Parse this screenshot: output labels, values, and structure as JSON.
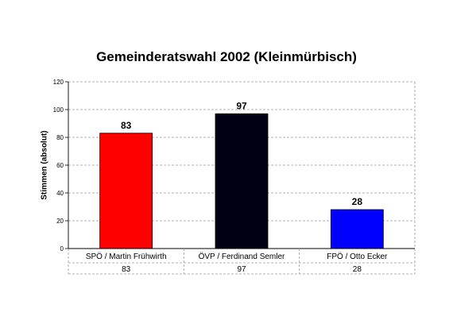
{
  "chart_data": {
    "type": "bar",
    "title": "Gemeinderatswahl 2002 (Kleinmürbisch)",
    "ylabel": "Stimmen (absolut)",
    "xlabel": "",
    "ylim": [
      0,
      120
    ],
    "yticks": [
      0,
      20,
      40,
      60,
      80,
      100,
      120
    ],
    "grid": true,
    "categories": [
      "SPÖ / Martin Frühwirth",
      "ÖVP / Ferdinand Semler",
      "FPÖ / Otto Ecker"
    ],
    "values": [
      83,
      97,
      28
    ],
    "colors": [
      "#ff0000",
      "#000014",
      "#0000ff"
    ],
    "data_labels": [
      "83",
      "97",
      "28"
    ],
    "table_values": [
      "83",
      "97",
      "28"
    ],
    "plot_background": "#ffffff",
    "gridline_color": "#999999"
  }
}
